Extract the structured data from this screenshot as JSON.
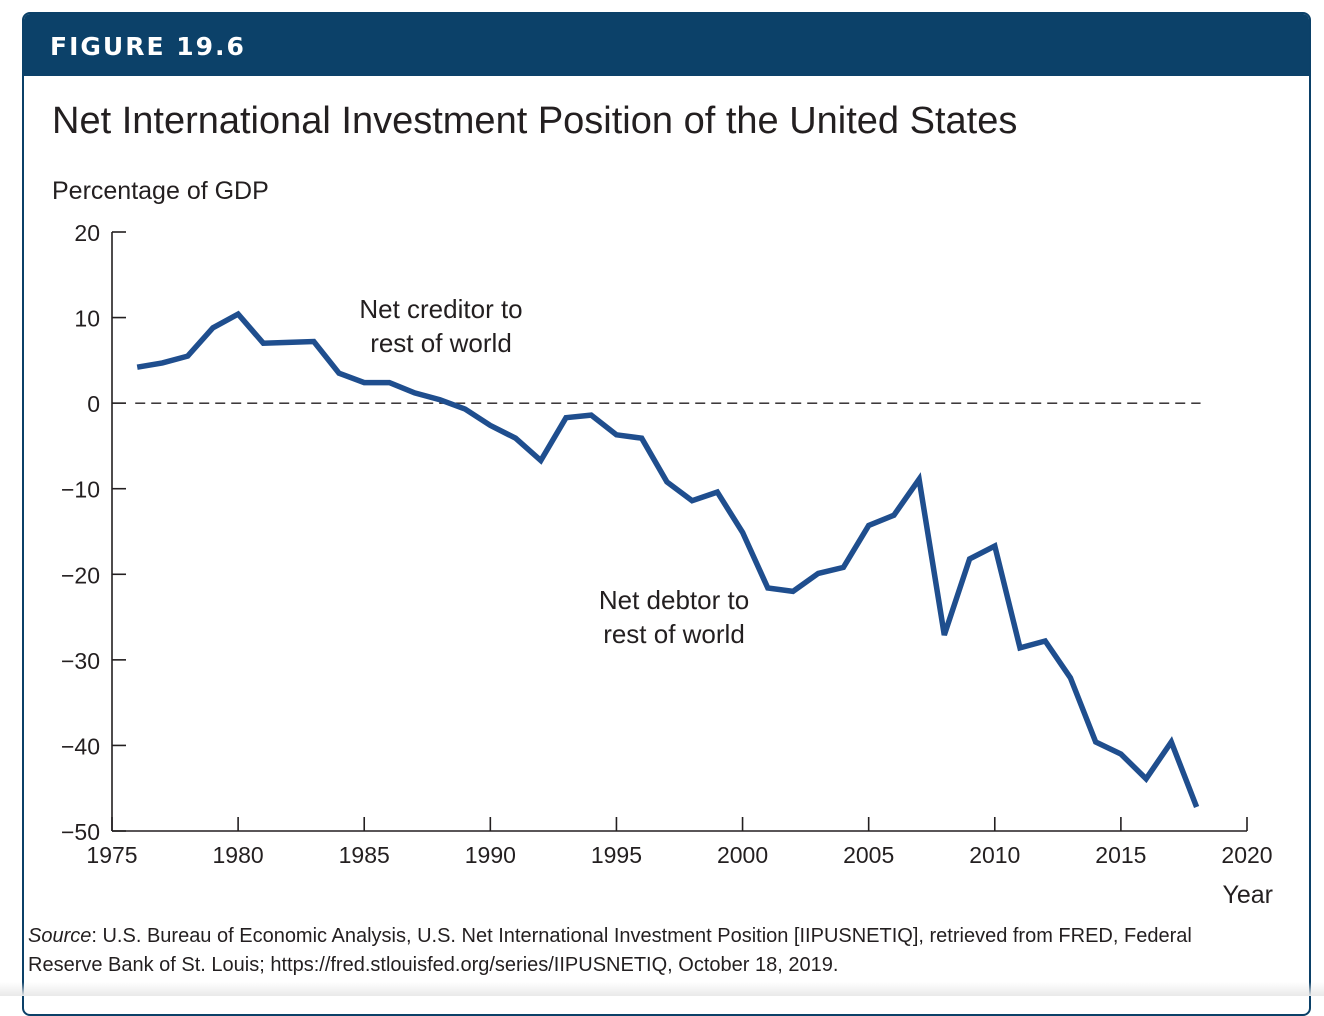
{
  "figure": {
    "label": "FIGURE 19.6",
    "title": "Net International Investment Position of the United States",
    "source_label": "Source",
    "source_text": ": U.S. Bureau of Economic Analysis, U.S. Net International Investment Position [IIPUSNETIQ], retrieved from FRED, Federal Reserve Bank of St. Louis; https://fred.stlouisfed.org/series/IIPUSNETIQ, October 18, 2019."
  },
  "colors": {
    "banner": "#0c4169",
    "series_line": "#1f4e8e",
    "axis": "#231f20"
  },
  "chart_data": {
    "type": "line",
    "title": "Net International Investment Position of the United States",
    "ylabel": "Percentage of GDP",
    "xlabel": "Year",
    "xlim": [
      1975,
      2020
    ],
    "ylim": [
      -50,
      20
    ],
    "x_ticks": [
      1975,
      1980,
      1985,
      1990,
      1995,
      2000,
      2005,
      2010,
      2015,
      2020
    ],
    "y_ticks": [
      20,
      10,
      0,
      -10,
      -20,
      -30,
      -40,
      -50
    ],
    "x_tick_labels": [
      "1975",
      "1980",
      "1985",
      "1990",
      "1995",
      "2000",
      "2005",
      "2010",
      "2015",
      "2020"
    ],
    "y_tick_labels": [
      "20",
      "10",
      "0",
      "−10",
      "−20",
      "−30",
      "−40",
      "−50"
    ],
    "reference_line": {
      "y": 0,
      "style": "dashed"
    },
    "grid": false,
    "annotations": [
      {
        "text": "Net creditor to\nrest of world",
        "x": 1983.1,
        "y": 8.3
      },
      {
        "text": "Net debtor to\rrest of world",
        "x": 1992.4,
        "y": -25.8
      }
    ],
    "series": [
      {
        "x": [
          1976,
          1977,
          1978,
          1979,
          1980,
          1981,
          1982,
          1983,
          1984,
          1985,
          1986,
          1987,
          1988,
          1989,
          1990,
          1991,
          1992,
          1993,
          1994,
          1995,
          1996,
          1997,
          1998,
          1999,
          2000,
          2001,
          2002,
          2003,
          2004,
          2005,
          2006,
          2007,
          2008,
          2009,
          2010,
          2011,
          2012,
          2013,
          2014,
          2015,
          2016,
          2017,
          2018
        ],
        "values": [
          4.2,
          4.7,
          5.5,
          8.8,
          10.4,
          7.0,
          7.1,
          7.2,
          3.5,
          2.4,
          2.4,
          1.2,
          0.4,
          -0.7,
          -2.6,
          -4.1,
          -6.7,
          -1.7,
          -1.4,
          -3.7,
          -4.1,
          -9.2,
          -11.4,
          -10.4,
          -15.1,
          -21.6,
          -22.0,
          -19.9,
          -19.2,
          -14.3,
          -13.1,
          -8.9,
          -27.1,
          -18.2,
          -16.7,
          -28.6,
          -27.8,
          -32.1,
          -39.6,
          -41.0,
          -43.9,
          -39.6,
          -47.2
        ]
      }
    ]
  },
  "axis_titles": {
    "y": "Percentage of GDP",
    "x": "Year"
  },
  "annotation_lines": {
    "creditor_1": "Net creditor to",
    "creditor_2": "rest of world",
    "debtor_1": "Net debtor to",
    "debtor_2": "rest of world"
  }
}
